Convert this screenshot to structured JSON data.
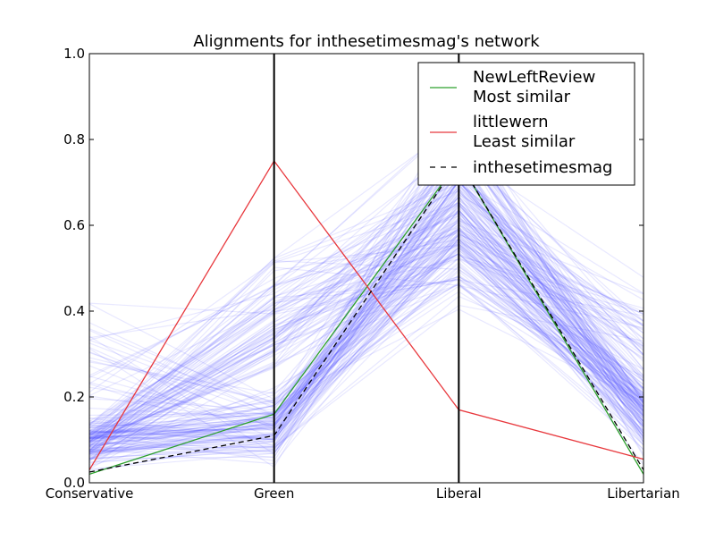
{
  "chart_data": {
    "type": "line",
    "subtype": "parallel-coordinates",
    "title": "Alignments for inthesetimesmag's network",
    "categories": [
      "Conservative",
      "Green",
      "Liberal",
      "Libertarian"
    ],
    "ylim": [
      0,
      1
    ],
    "yticks": [
      "0.0",
      "0.2",
      "0.4",
      "0.6",
      "0.8",
      "1.0"
    ],
    "grid": false,
    "legend_placement": "top-right",
    "series": [
      {
        "name": "NewLeftReview",
        "sublabel": "Most similar",
        "values": [
          0.02,
          0.16,
          0.75,
          0.02
        ],
        "color": "#2ca02c",
        "dash": "solid"
      },
      {
        "name": "littlewern",
        "sublabel": "Least similar",
        "values": [
          0.03,
          0.75,
          0.17,
          0.055
        ],
        "color": "#e8383d",
        "dash": "solid"
      },
      {
        "name": "inthesetimesmag",
        "values": [
          0.025,
          0.11,
          0.75,
          0.03
        ],
        "color": "#000000",
        "dash": "dashed"
      }
    ],
    "background_lines": {
      "color": "#4a4aff",
      "count": 190
    }
  }
}
